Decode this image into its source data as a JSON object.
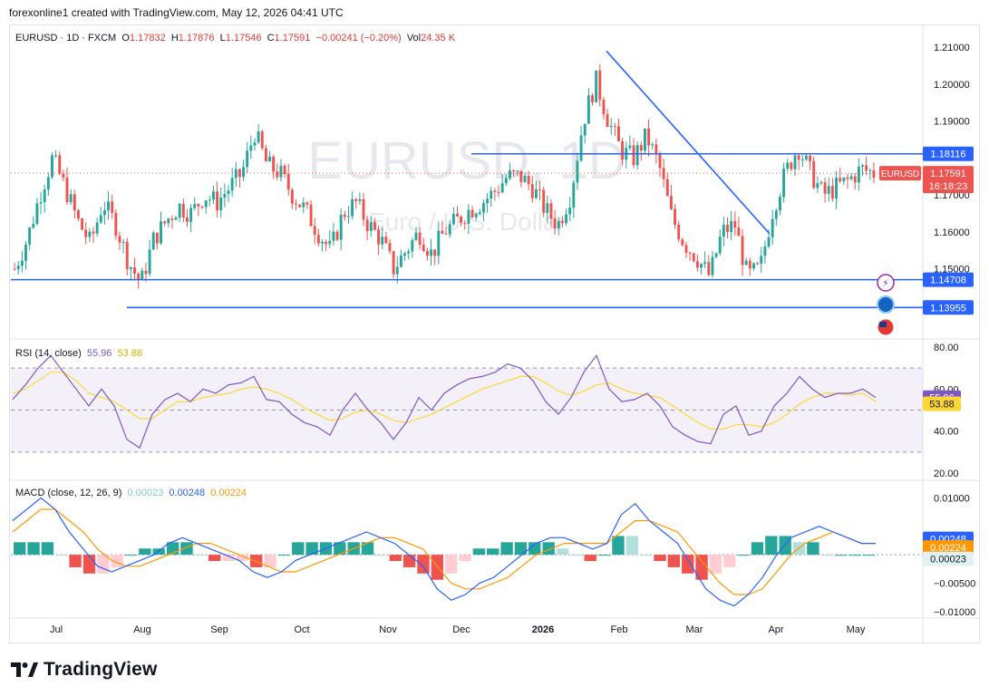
{
  "caption": "forexonline1 created with TradingView.com, May 12, 2026 04:41 UTC",
  "brand": "TradingView",
  "symbol_header": {
    "symbol": "EURUSD · 1D · FXCM",
    "open_label": "O",
    "open": "1.17832",
    "high_label": "H",
    "high": "1.17876",
    "low_label": "L",
    "low": "1.17546",
    "close_label": "C",
    "close": "1.17591",
    "change": "−0.00241 (−0.20%)",
    "vol_label": "Vol",
    "vol": "24.35 K"
  },
  "watermark": {
    "symbol": "EURUSD, 1D",
    "name": "Euro / U.S. Dollar"
  },
  "price_pane": {
    "y_ticks": [
      "1.21000",
      "1.20000",
      "1.19000",
      "1.17000",
      "1.16000",
      "1.15000"
    ],
    "symbol_tag": "EURUSD",
    "last_price": "1.17591",
    "countdown": "16:18:23",
    "level_tags": [
      "1.18116",
      "1.14708",
      "1.13955"
    ]
  },
  "rsi_pane": {
    "label": "RSI (14, close)",
    "value": "55.96",
    "ma_value": "53.88",
    "y_ticks": [
      "80.00",
      "60.00",
      "40.00",
      "20.00"
    ]
  },
  "macd_pane": {
    "label": "MACD (close, 12, 26, 9)",
    "hist_value": "0.00023",
    "macd_value": "0.00248",
    "signal_value": "0.00224",
    "y_ticks": [
      "0.01000",
      "−0.00500",
      "−0.01000"
    ]
  },
  "x_axis": [
    "Jul",
    "Aug",
    "Sep",
    "Oct",
    "Nov",
    "Dec",
    "2026",
    "Feb",
    "Mar",
    "Apr",
    "May"
  ],
  "colors": {
    "up": "#26a69a",
    "down": "#ef5350",
    "line": "#2962ff",
    "rsi": "#7e57c2",
    "rsi_ma": "#fdd835",
    "signal": "#ff9800",
    "macd": "#2962ff"
  },
  "chart_data": [
    {
      "type": "candlestick",
      "title": "EURUSD · 1D · FXCM",
      "ylim": [
        1.133,
        1.213
      ],
      "x_start": "2025-06-16",
      "close_path_approx": [
        1.15,
        1.158,
        1.17,
        1.18,
        1.172,
        1.163,
        1.157,
        1.168,
        1.162,
        1.152,
        1.146,
        1.158,
        1.163,
        1.167,
        1.165,
        1.17,
        1.168,
        1.172,
        1.176,
        1.187,
        1.178,
        1.176,
        1.17,
        1.166,
        1.16,
        1.155,
        1.165,
        1.168,
        1.162,
        1.158,
        1.15,
        1.155,
        1.16,
        1.154,
        1.16,
        1.163,
        1.166,
        1.168,
        1.171,
        1.175,
        1.175,
        1.172,
        1.166,
        1.162,
        1.17,
        1.19,
        1.201,
        1.19,
        1.182,
        1.18,
        1.186,
        1.178,
        1.164,
        1.157,
        1.153,
        1.148,
        1.16,
        1.162,
        1.148,
        1.15,
        1.166,
        1.176,
        1.183,
        1.176,
        1.17,
        1.172,
        1.174,
        1.177,
        1.176
      ],
      "horizontal_levels": [
        1.18116,
        1.14708,
        1.13955
      ],
      "trendline": {
        "from": [
          "2026-01-27",
          1.209
        ],
        "to": [
          "2026-03-27",
          1.1595
        ]
      }
    },
    {
      "type": "line",
      "title": "RSI (14, close)",
      "ylim": [
        20,
        80
      ],
      "bands": [
        70,
        50,
        30
      ],
      "series": [
        {
          "name": "RSI",
          "values": [
            55,
            62,
            70,
            76,
            68,
            60,
            52,
            60,
            52,
            36,
            32,
            48,
            55,
            58,
            54,
            60,
            58,
            62,
            63,
            66,
            55,
            54,
            48,
            44,
            42,
            38,
            50,
            58,
            50,
            44,
            36,
            44,
            56,
            50,
            58,
            62,
            65,
            66,
            68,
            72,
            70,
            64,
            54,
            48,
            56,
            68,
            76,
            60,
            54,
            55,
            58,
            52,
            42,
            38,
            35,
            34,
            48,
            52,
            38,
            40,
            52,
            58,
            66,
            60,
            56,
            58,
            58,
            60,
            56
          ]
        },
        {
          "name": "RSI MA",
          "values": [
            58,
            60,
            64,
            68,
            68,
            64,
            58,
            56,
            54,
            50,
            46,
            46,
            50,
            54,
            54,
            56,
            57,
            58,
            60,
            61,
            60,
            58,
            55,
            51,
            48,
            45,
            46,
            49,
            50,
            48,
            45,
            44,
            46,
            48,
            51,
            54,
            57,
            60,
            62,
            64,
            66,
            66,
            63,
            59,
            57,
            59,
            62,
            63,
            60,
            58,
            57,
            56,
            52,
            48,
            44,
            41,
            41,
            43,
            43,
            42,
            44,
            48,
            53,
            56,
            58,
            58,
            57,
            58,
            54
          ]
        }
      ]
    },
    {
      "type": "bar",
      "title": "MACD (close, 12, 26, 9)",
      "ylim": [
        -0.0105,
        0.0115
      ],
      "series": [
        {
          "name": "MACD",
          "values": [
            0.006,
            0.008,
            0.01,
            0.008,
            0.004,
            0.001,
            -0.002,
            -0.003,
            -0.002,
            -0.001,
            0.0,
            0.002,
            0.003,
            0.002,
            0.001,
            0.0,
            -0.001,
            -0.003,
            -0.004,
            -0.003,
            -0.001,
            0.0,
            0.001,
            0.002,
            0.003,
            0.004,
            0.003,
            0.002,
            0.0,
            -0.002,
            -0.006,
            -0.008,
            -0.007,
            -0.005,
            -0.004,
            -0.002,
            0.0,
            0.002,
            0.003,
            0.003,
            0.002,
            0.001,
            0.002,
            0.007,
            0.009,
            0.006,
            0.004,
            0.002,
            -0.002,
            -0.006,
            -0.008,
            -0.009,
            -0.007,
            -0.004,
            0.0,
            0.003,
            0.004,
            0.005,
            0.004,
            0.003,
            0.002,
            0.002
          ]
        },
        {
          "name": "Signal",
          "values": [
            0.004,
            0.006,
            0.008,
            0.008,
            0.006,
            0.004,
            0.001,
            -0.001,
            -0.002,
            -0.002,
            -0.001,
            0.0,
            0.001,
            0.002,
            0.002,
            0.001,
            0.0,
            -0.001,
            -0.002,
            -0.003,
            -0.003,
            -0.002,
            -0.001,
            0.0,
            0.001,
            0.002,
            0.003,
            0.003,
            0.002,
            0.001,
            -0.002,
            -0.005,
            -0.006,
            -0.006,
            -0.005,
            -0.004,
            -0.002,
            0.0,
            0.001,
            0.002,
            0.002,
            0.002,
            0.002,
            0.004,
            0.006,
            0.006,
            0.005,
            0.004,
            0.001,
            -0.002,
            -0.005,
            -0.007,
            -0.007,
            -0.006,
            -0.003,
            0.0,
            0.002,
            0.003,
            0.004,
            0.003,
            0.002,
            0.002
          ]
        }
      ]
    }
  ]
}
